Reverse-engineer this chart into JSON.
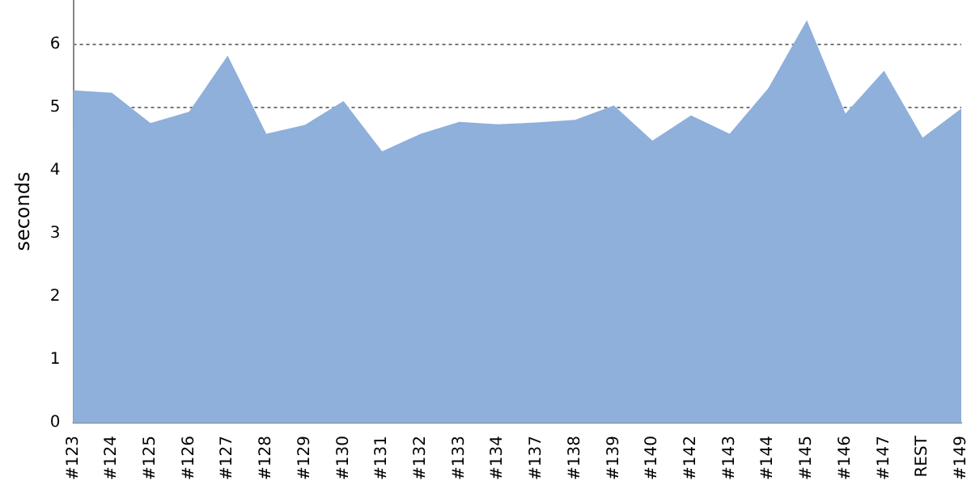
{
  "chart_data": {
    "type": "area",
    "ylabel": "seconds",
    "categories": [
      "#123",
      "#124",
      "#125",
      "#126",
      "#127",
      "#128",
      "#129",
      "#130",
      "#131",
      "#132",
      "#133",
      "#134",
      "#137",
      "#138",
      "#139",
      "#140",
      "#142",
      "#143",
      "#144",
      "#145",
      "#146",
      "#147",
      "REST",
      "#149"
    ],
    "series": [
      {
        "color": "#8eb0da",
        "values": [
          5.27,
          5.23,
          4.75,
          4.93,
          5.82,
          4.58,
          4.72,
          5.1,
          4.3,
          4.58,
          4.77,
          4.73,
          4.76,
          4.8,
          5.03,
          4.47,
          4.87,
          4.58,
          5.3,
          6.38,
          4.9,
          5.58,
          4.52,
          4.98
        ]
      }
    ],
    "ylim": [
      0,
      6.7
    ],
    "yticks": [
      0,
      1,
      2,
      3,
      4,
      5,
      6
    ],
    "grid": "y",
    "marker": "none"
  }
}
